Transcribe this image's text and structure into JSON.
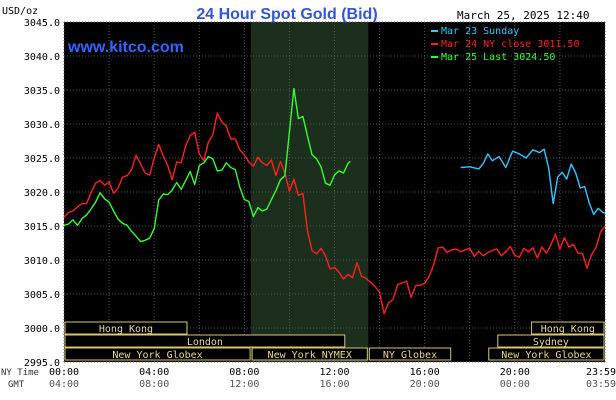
{
  "chart_data": {
    "type": "line",
    "title": "24 Hour Spot Gold (Bid)",
    "watermark": "www.kitco.com",
    "unit_label": "USD/oz",
    "timestamp": "March 25, 2025 12:40",
    "ylim": [
      2995,
      3045
    ],
    "yticks": [
      "3045.0",
      "3040.0",
      "3035.0",
      "3030.0",
      "3025.0",
      "3020.0",
      "3015.0",
      "3010.0",
      "3005.0",
      "3000.0",
      "2995.0"
    ],
    "ytick_values": [
      3045,
      3040,
      3035,
      3030,
      3025,
      3020,
      3015,
      3010,
      3005,
      3000,
      2995
    ],
    "xlim": [
      0,
      24
    ],
    "xticks": [
      {
        "h": 0,
        "ny": "00:00",
        "gmt": "04:00"
      },
      {
        "h": 4,
        "ny": "04:00",
        "gmt": "08:00"
      },
      {
        "h": 8,
        "ny": "08:00",
        "gmt": "12:00"
      },
      {
        "h": 12,
        "ny": "12:00",
        "gmt": "16:00"
      },
      {
        "h": 16,
        "ny": "16:00",
        "gmt": "20:00"
      },
      {
        "h": 20,
        "ny": "20:00",
        "gmt": "00:00"
      },
      {
        "h": 24,
        "ny": "23:59",
        "gmt": "03:59"
      }
    ],
    "axis_row_labels": {
      "ny": "NY Time",
      "gmt": "GMT"
    },
    "highlight_hours": [
      8.3,
      13.5
    ],
    "legend": [
      {
        "label": "Mar 23 Sunday",
        "color": "#33c5ff"
      },
      {
        "label": "Mar 24 NY close 3011.50",
        "color": "#ff2020"
      },
      {
        "label": "Mar 25 Last 3024.50",
        "color": "#33ff33"
      }
    ],
    "sessions": [
      {
        "label": "Hong Kong",
        "row": 0,
        "start": 0,
        "end": 5.5
      },
      {
        "label": "London",
        "row": 1,
        "start": 0,
        "end": 12.5
      },
      {
        "label": "New York Globex",
        "row": 2,
        "start": 0,
        "end": 8.3
      },
      {
        "label": "New York NYMEX",
        "row": 2,
        "start": 8.3,
        "end": 13.5
      },
      {
        "label": "NY Globex",
        "row": 2,
        "start": 13.5,
        "end": 17.2
      },
      {
        "label": "Hong Kong",
        "row": 0,
        "start": 20.7,
        "end": 24
      },
      {
        "label": "Sydney",
        "row": 1,
        "start": 19.2,
        "end": 24
      },
      {
        "label": "New York Globex",
        "row": 2,
        "start": 18.8,
        "end": 24
      }
    ],
    "series": [
      {
        "name": "Mar 23 Sunday",
        "color": "#33c5ff",
        "points": [
          [
            17.6,
            3023.6
          ],
          [
            18.0,
            3023.7
          ],
          [
            18.4,
            3023.4
          ],
          [
            18.6,
            3024.2
          ],
          [
            18.8,
            3025.6
          ],
          [
            19.0,
            3024.6
          ],
          [
            19.3,
            3025.2
          ],
          [
            19.6,
            3023.6
          ],
          [
            19.9,
            3026.0
          ],
          [
            20.2,
            3025.6
          ],
          [
            20.5,
            3025.0
          ],
          [
            20.8,
            3026.2
          ],
          [
            21.1,
            3025.8
          ],
          [
            21.3,
            3026.3
          ],
          [
            21.5,
            3023.6
          ],
          [
            21.7,
            3018.3
          ],
          [
            21.9,
            3022.2
          ],
          [
            22.1,
            3022.9
          ],
          [
            22.3,
            3021.9
          ],
          [
            22.5,
            3024.1
          ],
          [
            22.7,
            3022.8
          ],
          [
            22.9,
            3020.6
          ],
          [
            23.1,
            3020.8
          ],
          [
            23.3,
            3018.4
          ],
          [
            23.5,
            3016.7
          ],
          [
            23.7,
            3017.6
          ],
          [
            23.9,
            3017.0
          ],
          [
            24.0,
            3016.9
          ]
        ]
      },
      {
        "name": "Mar 24 NY close 3011.50",
        "color": "#ff2020",
        "points": [
          [
            0,
            3016.3
          ],
          [
            0.2,
            3017.0
          ],
          [
            0.4,
            3017.2
          ],
          [
            0.6,
            3017.8
          ],
          [
            0.8,
            3018.3
          ],
          [
            1.0,
            3018.3
          ],
          [
            1.2,
            3019.9
          ],
          [
            1.4,
            3021.3
          ],
          [
            1.6,
            3021.7
          ],
          [
            1.8,
            3021.0
          ],
          [
            2.0,
            3021.5
          ],
          [
            2.2,
            3019.8
          ],
          [
            2.4,
            3020.6
          ],
          [
            2.6,
            3022.2
          ],
          [
            2.8,
            3022.4
          ],
          [
            3.0,
            3023.3
          ],
          [
            3.2,
            3025.4
          ],
          [
            3.4,
            3024.1
          ],
          [
            3.6,
            3022.8
          ],
          [
            3.8,
            3022.5
          ],
          [
            4.0,
            3025.0
          ],
          [
            4.2,
            3027.0
          ],
          [
            4.4,
            3025.3
          ],
          [
            4.6,
            3023.9
          ],
          [
            4.8,
            3021.8
          ],
          [
            5.0,
            3024.4
          ],
          [
            5.2,
            3024.3
          ],
          [
            5.4,
            3026.8
          ],
          [
            5.6,
            3028.3
          ],
          [
            5.8,
            3028.8
          ],
          [
            6.0,
            3025.6
          ],
          [
            6.2,
            3024.6
          ],
          [
            6.4,
            3027.3
          ],
          [
            6.6,
            3028.4
          ],
          [
            6.8,
            3031.6
          ],
          [
            7.0,
            3030.3
          ],
          [
            7.2,
            3029.7
          ],
          [
            7.4,
            3027.8
          ],
          [
            7.6,
            3027.8
          ],
          [
            7.8,
            3026.2
          ],
          [
            8.0,
            3025.5
          ],
          [
            8.2,
            3024.4
          ],
          [
            8.4,
            3023.8
          ],
          [
            8.6,
            3025.1
          ],
          [
            8.8,
            3024.3
          ],
          [
            9.0,
            3023.9
          ],
          [
            9.2,
            3024.7
          ],
          [
            9.4,
            3022.4
          ],
          [
            9.6,
            3024.5
          ],
          [
            9.8,
            3022.8
          ],
          [
            10.0,
            3020.1
          ],
          [
            10.2,
            3021.9
          ],
          [
            10.4,
            3019.5
          ],
          [
            10.6,
            3019.8
          ],
          [
            10.8,
            3014.3
          ],
          [
            11.0,
            3011.4
          ],
          [
            11.2,
            3010.9
          ],
          [
            11.4,
            3011.7
          ],
          [
            11.6,
            3010.6
          ],
          [
            11.8,
            3008.7
          ],
          [
            12.0,
            3008.9
          ],
          [
            12.2,
            3008.2
          ],
          [
            12.4,
            3007.2
          ],
          [
            12.6,
            3007.9
          ],
          [
            12.8,
            3007.4
          ],
          [
            13.0,
            3009.6
          ],
          [
            13.2,
            3007.6
          ],
          [
            13.4,
            3007.3
          ],
          [
            13.6,
            3006.7
          ],
          [
            13.8,
            3006.1
          ],
          [
            14.0,
            3005.2
          ],
          [
            14.2,
            3002.1
          ],
          [
            14.4,
            3003.7
          ],
          [
            14.6,
            3004.2
          ],
          [
            14.8,
            3006.4
          ],
          [
            15.0,
            3006.6
          ],
          [
            15.2,
            3006.9
          ],
          [
            15.4,
            3004.5
          ],
          [
            15.6,
            3006.2
          ],
          [
            15.8,
            3006.3
          ],
          [
            16.0,
            3006.6
          ],
          [
            16.2,
            3007.6
          ],
          [
            16.4,
            3009.3
          ],
          [
            16.6,
            3011.8
          ],
          [
            16.8,
            3011.9
          ],
          [
            17.0,
            3011.1
          ],
          [
            17.2,
            3011.5
          ],
          [
            17.4,
            3011.6
          ],
          [
            17.6,
            3011.2
          ],
          [
            17.8,
            3011.5
          ],
          [
            18.0,
            3011.7
          ],
          [
            18.2,
            3010.5
          ],
          [
            18.4,
            3011.3
          ],
          [
            18.6,
            3010.6
          ],
          [
            18.8,
            3011.1
          ],
          [
            19.0,
            3011.4
          ],
          [
            19.2,
            3011.6
          ],
          [
            19.4,
            3010.6
          ],
          [
            19.6,
            3011.2
          ],
          [
            19.8,
            3012.0
          ],
          [
            20.0,
            3010.7
          ],
          [
            20.2,
            3010.4
          ],
          [
            20.4,
            3011.7
          ],
          [
            20.6,
            3011.2
          ],
          [
            20.8,
            3011.8
          ],
          [
            21.0,
            3010.3
          ],
          [
            21.2,
            3011.9
          ],
          [
            21.4,
            3011.0
          ],
          [
            21.6,
            3012.2
          ],
          [
            21.8,
            3013.8
          ],
          [
            22.0,
            3011.6
          ],
          [
            22.2,
            3013.3
          ],
          [
            22.4,
            3011.9
          ],
          [
            22.6,
            3012.3
          ],
          [
            22.8,
            3011.0
          ],
          [
            23.0,
            3011.0
          ],
          [
            23.2,
            3008.8
          ],
          [
            23.4,
            3010.8
          ],
          [
            23.6,
            3011.8
          ],
          [
            23.8,
            3014.1
          ],
          [
            24.0,
            3015.0
          ]
        ]
      },
      {
        "name": "Mar 25 Last 3024.50",
        "color": "#33ff33",
        "points": [
          [
            0,
            3015.1
          ],
          [
            0.2,
            3015.3
          ],
          [
            0.4,
            3015.9
          ],
          [
            0.6,
            3015.1
          ],
          [
            0.8,
            3016.1
          ],
          [
            1.0,
            3016.6
          ],
          [
            1.2,
            3017.5
          ],
          [
            1.4,
            3018.5
          ],
          [
            1.6,
            3019.9
          ],
          [
            1.8,
            3019.0
          ],
          [
            2.0,
            3018.5
          ],
          [
            2.2,
            3017.2
          ],
          [
            2.4,
            3016.0
          ],
          [
            2.6,
            3015.4
          ],
          [
            2.8,
            3015.1
          ],
          [
            3.0,
            3014.2
          ],
          [
            3.2,
            3013.5
          ],
          [
            3.4,
            3012.7
          ],
          [
            3.6,
            3012.9
          ],
          [
            3.8,
            3013.2
          ],
          [
            4.0,
            3014.6
          ],
          [
            4.2,
            3018.8
          ],
          [
            4.4,
            3019.7
          ],
          [
            4.6,
            3019.6
          ],
          [
            4.8,
            3020.3
          ],
          [
            5.0,
            3021.4
          ],
          [
            5.2,
            3020.4
          ],
          [
            5.4,
            3021.7
          ],
          [
            5.6,
            3023.0
          ],
          [
            5.8,
            3021.1
          ],
          [
            6.0,
            3023.9
          ],
          [
            6.2,
            3024.3
          ],
          [
            6.4,
            3025.2
          ],
          [
            6.6,
            3024.9
          ],
          [
            6.8,
            3023.1
          ],
          [
            7.0,
            3023.2
          ],
          [
            7.2,
            3024.3
          ],
          [
            7.4,
            3023.6
          ],
          [
            7.6,
            3023.3
          ],
          [
            7.8,
            3020.7
          ],
          [
            8.0,
            3018.9
          ],
          [
            8.2,
            3018.6
          ],
          [
            8.4,
            3016.4
          ],
          [
            8.6,
            3017.7
          ],
          [
            8.8,
            3017.2
          ],
          [
            9.0,
            3017.5
          ],
          [
            9.2,
            3018.9
          ],
          [
            9.4,
            3020.2
          ],
          [
            9.6,
            3021.8
          ],
          [
            9.8,
            3022.4
          ],
          [
            10.0,
            3028.8
          ],
          [
            10.2,
            3035.2
          ],
          [
            10.4,
            3030.8
          ],
          [
            10.6,
            3031.1
          ],
          [
            10.8,
            3028.2
          ],
          [
            11.0,
            3025.5
          ],
          [
            11.2,
            3024.9
          ],
          [
            11.4,
            3023.7
          ],
          [
            11.6,
            3021.3
          ],
          [
            11.8,
            3021.0
          ],
          [
            12.0,
            3022.5
          ],
          [
            12.2,
            3023.1
          ],
          [
            12.4,
            3022.8
          ],
          [
            12.6,
            3024.2
          ],
          [
            12.7,
            3024.5
          ]
        ]
      }
    ]
  }
}
